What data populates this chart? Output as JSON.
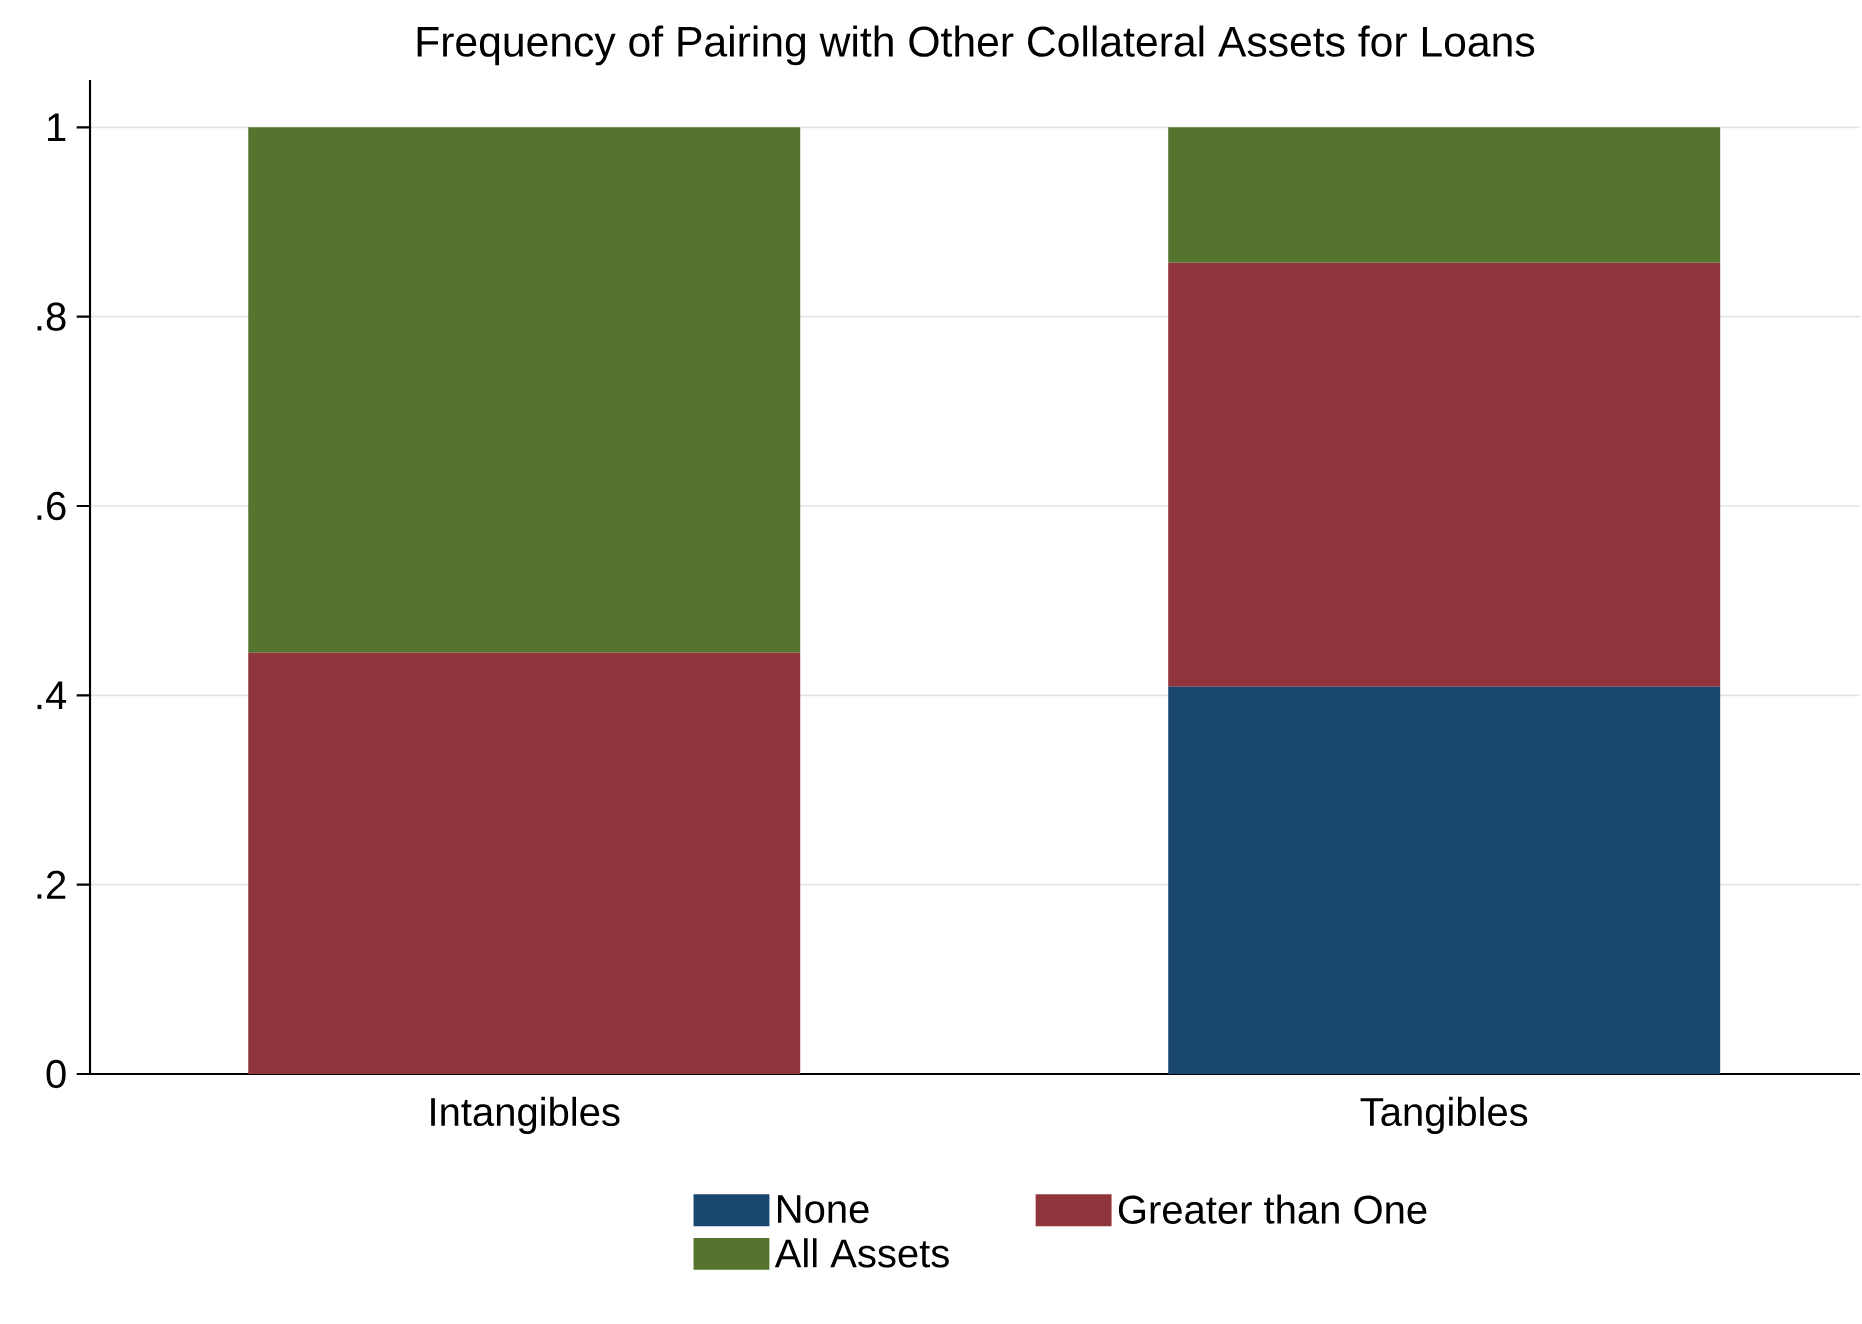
{
  "chart_data": {
    "type": "bar",
    "title": "Frequency of Pairing with Other Collateral Assets for Loans",
    "categories": [
      "Intangibles",
      "Tangibles"
    ],
    "stacked": true,
    "series": [
      {
        "name": "None",
        "color": "#1a476f",
        "values": [
          0,
          0.409
        ]
      },
      {
        "name": "Greater than One",
        "color": "#90353b",
        "values": [
          0.445,
          0.448
        ]
      },
      {
        "name": "All Assets",
        "color": "#55752f",
        "values": [
          0.555,
          0.143
        ]
      }
    ],
    "ylim": [
      0,
      1.05
    ],
    "yticks": [
      {
        "value": 0,
        "label": "0"
      },
      {
        "value": 0.2,
        "label": ".2"
      },
      {
        "value": 0.4,
        "label": ".4"
      },
      {
        "value": 0.6,
        "label": ".6"
      },
      {
        "value": 0.8,
        "label": ".8"
      },
      {
        "value": 1,
        "label": "1"
      }
    ],
    "grid": "y",
    "legend": "bottom"
  }
}
